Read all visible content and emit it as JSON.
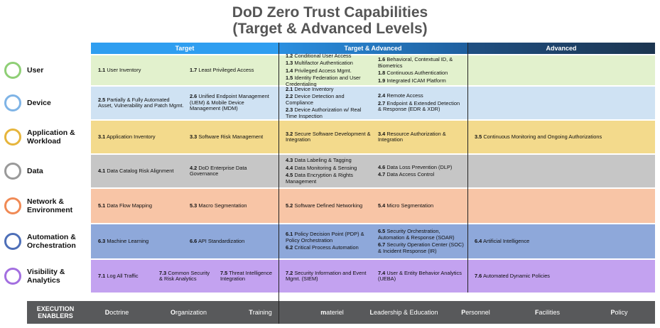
{
  "header": {
    "title_line1": "DoD Zero Trust Capabilities",
    "title_line2": "(Target & Advanced Levels)"
  },
  "columns": [
    "Target",
    "Target & Advanced",
    "Advanced"
  ],
  "pillars": [
    {
      "name": "User",
      "target": [
        [
          {
            "id": "1.1",
            "text": "User Inventory"
          }
        ],
        [
          {
            "id": "1.7",
            "text": "Least Privileged Access"
          }
        ]
      ],
      "target_advanced": [
        [
          {
            "id": "1.2",
            "text": "Conditional User Access"
          },
          {
            "id": "1.3",
            "text": "Multifactor Authentication"
          },
          {
            "id": "1.4",
            "text": "Privileged Access Mgmt."
          },
          {
            "id": "1.5",
            "text": "Identity Federation and User Credentialing"
          }
        ],
        [
          {
            "id": "1.6",
            "text": "Behavioral, Contextual ID, & Biometrics"
          },
          {
            "id": "1.8",
            "text": "Continuous Authentication"
          },
          {
            "id": "1.9",
            "text": "Integrated ICAM Platform"
          }
        ]
      ],
      "advanced": []
    },
    {
      "name": "Device",
      "target": [
        [
          {
            "id": "2.5",
            "text": "Partially & Fully Automated Asset, Vulnerability and Patch Mgmt."
          }
        ],
        [
          {
            "id": "2.6",
            "text": "Unified Endpoint Management (UEM) & Mobile Device Management (MDM)"
          }
        ]
      ],
      "target_advanced": [
        [
          {
            "id": "2.1",
            "text": "Device Inventory"
          },
          {
            "id": "2.2",
            "text": "Device Detection and Compliance"
          },
          {
            "id": "2.3",
            "text": "Device Authorization w/ Real Time Inspection"
          }
        ],
        [
          {
            "id": "2.4",
            "text": "Remote Access"
          },
          {
            "id": "2.7",
            "text": "Endpoint & Extended Detection & Response (EDR & XDR)"
          }
        ]
      ],
      "advanced": []
    },
    {
      "name": "Application & Workload",
      "target": [
        [
          {
            "id": "3.1",
            "text": "Application Inventory"
          }
        ],
        [
          {
            "id": "3.3",
            "text": "Software Risk Management"
          }
        ]
      ],
      "target_advanced": [
        [
          {
            "id": "3.2",
            "text": "Secure Software Development & Integration"
          }
        ],
        [
          {
            "id": "3.4",
            "text": "Resource Authorization & Integration"
          }
        ]
      ],
      "advanced": [
        [
          {
            "id": "3.5",
            "text": "Continuous Monitoring and Ongoing Authorizations"
          }
        ]
      ]
    },
    {
      "name": "Data",
      "target": [
        [
          {
            "id": "4.1",
            "text": "Data Catalog Risk Alignment"
          }
        ],
        [
          {
            "id": "4.2",
            "text": "DoD Enterprise Data Governance"
          }
        ]
      ],
      "target_advanced": [
        [
          {
            "id": "4.3",
            "text": "Data Labeling & Tagging"
          },
          {
            "id": "4.4",
            "text": "Data Monitoring & Sensing"
          },
          {
            "id": "4.5",
            "text": "Data Encryption & Rights Management"
          }
        ],
        [
          {
            "id": "4.6",
            "text": "Data Loss Prevention (DLP)"
          },
          {
            "id": "4.7",
            "text": "Data Access Control"
          }
        ]
      ],
      "advanced": []
    },
    {
      "name": "Network & Environment",
      "target": [
        [
          {
            "id": "5.1",
            "text": "Data Flow Mapping"
          }
        ],
        [
          {
            "id": "5.3",
            "text": "Macro Segmentation"
          }
        ]
      ],
      "target_advanced": [
        [
          {
            "id": "5.2",
            "text": "Software Defined Networking"
          }
        ],
        [
          {
            "id": "5.4",
            "text": "Micro Segmentation"
          }
        ]
      ],
      "advanced": []
    },
    {
      "name": "Automation & Orchestration",
      "target": [
        [
          {
            "id": "6.3",
            "text": "Machine Learning"
          }
        ],
        [
          {
            "id": "6.6",
            "text": "API Standardization"
          }
        ]
      ],
      "target_advanced": [
        [
          {
            "id": "6.1",
            "text": "Policy Decision Point (PDP) & Policy Orchestration"
          },
          {
            "id": "6.2",
            "text": "Critical Process Automation"
          }
        ],
        [
          {
            "id": "6.5",
            "text": "Security Orchestration, Automation & Response (SOAR)"
          },
          {
            "id": "6.7",
            "text": "Security Operation Center (SOC) & Incident Response (IR)"
          }
        ]
      ],
      "advanced": [
        [
          {
            "id": "6.4",
            "text": "Artificial Intelligence"
          }
        ]
      ]
    },
    {
      "name": "Visibility & Analytics",
      "target": [
        [
          {
            "id": "7.1",
            "text": "Log All Traffic"
          }
        ],
        [
          {
            "id": "7.3",
            "text": "Common Security & Risk Analytics"
          }
        ],
        [
          {
            "id": "7.5",
            "text": "Threat Intelligence Integration"
          }
        ]
      ],
      "target_advanced": [
        [
          {
            "id": "7.2",
            "text": "Security Information and Event Mgmt. (SIEM)"
          }
        ],
        [
          {
            "id": "7.4",
            "text": "User & Entity Behavior Analytics (UEBA)"
          }
        ]
      ],
      "advanced": [
        [
          {
            "id": "7.6",
            "text": "Automated Dynamic Policies"
          }
        ]
      ]
    }
  ],
  "enablers": {
    "label": "EXECUTION ENABLERS",
    "items": [
      "Doctrine",
      "Organization",
      "Training",
      "materiel",
      "Leadership & Education",
      "Personnel",
      "Facilities",
      "Policy"
    ]
  }
}
